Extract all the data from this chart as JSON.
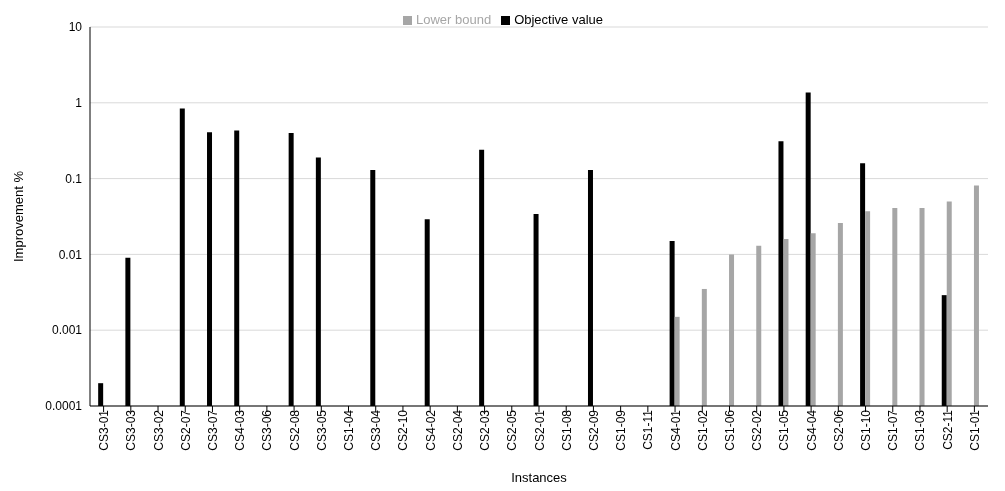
{
  "chart_data": {
    "type": "bar",
    "xlabel": "Instances",
    "ylabel": "Improvement %",
    "categories": [
      "CS3-01",
      "CS3-03",
      "CS3-02",
      "CS2-07",
      "CS3-07",
      "CS4-03",
      "CS3-06",
      "CS2-08",
      "CS3-05",
      "CS1-04",
      "CS3-04",
      "CS2-10",
      "CS4-02",
      "CS2-04",
      "CS2-03",
      "CS2-05",
      "CS2-01",
      "CS1-08",
      "CS2-09",
      "CS1-09",
      "CS1-11",
      "CS4-01",
      "CS1-02",
      "CS1-06",
      "CS2-02",
      "CS1-05",
      "CS4-04",
      "CS2-06",
      "CS1-10",
      "CS1-07",
      "CS1-03",
      "CS2-11",
      "CS1-01"
    ],
    "series": [
      {
        "name": "Objective value",
        "color": "#000000",
        "values": [
          0.0002,
          0.009,
          null,
          0.84,
          0.41,
          0.43,
          null,
          0.4,
          0.19,
          null,
          0.13,
          null,
          0.029,
          null,
          0.24,
          null,
          0.034,
          null,
          0.13,
          null,
          null,
          0.015,
          null,
          null,
          null,
          0.31,
          1.37,
          null,
          0.16,
          null,
          null,
          0.0029,
          null
        ]
      },
      {
        "name": "Lower bound",
        "color": "#a6a6a6",
        "values": [
          null,
          null,
          null,
          null,
          null,
          null,
          null,
          null,
          null,
          null,
          null,
          null,
          null,
          null,
          null,
          null,
          null,
          null,
          null,
          null,
          null,
          0.0015,
          0.0035,
          0.01,
          0.013,
          0.016,
          0.019,
          0.026,
          0.037,
          0.041,
          0.041,
          0.05,
          0.081
        ]
      }
    ],
    "log": true,
    "ylim": [
      0.0001,
      10
    ],
    "yticks": [
      0.0001,
      0.001,
      0.01,
      0.1,
      1,
      10
    ],
    "grid": "y",
    "legend": "top"
  }
}
